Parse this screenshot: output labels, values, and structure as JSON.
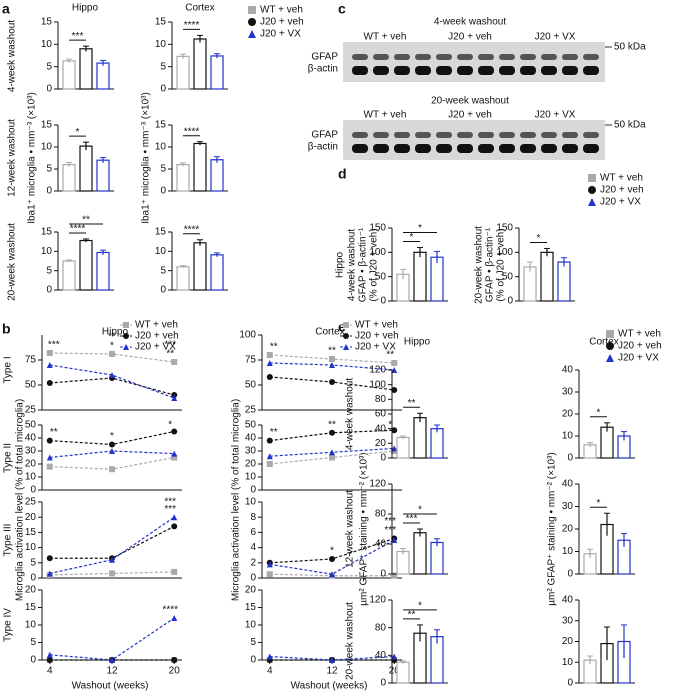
{
  "labels": {
    "letters": [
      "a",
      "b",
      "c",
      "d",
      "e"
    ],
    "hippo": "Hippo",
    "cortex": "Cortex",
    "washout": [
      "4-week washout",
      "12-week washout",
      "20-week washout"
    ],
    "iba1": "Iba1⁺ microglia • mm⁻³ (×10³)",
    "types": [
      "Type I",
      "Type II",
      "Type III",
      "Type IV"
    ],
    "activation": "Microglia activation level (% of total microglia)",
    "xlabel": "Washout (weeks)",
    "gfap_d": "GFAP • β-actin⁻¹",
    "pct": "(% of J20 + veh)",
    "gfap_e": "µm² GFAP⁺ staining • mm⁻² (×10³)",
    "blot": {
      "groups": [
        "WT + veh",
        "J20 + veh",
        "J20 + VX"
      ],
      "bands": [
        "GFAP",
        "β-actin"
      ],
      "kda": "50 kDa"
    }
  },
  "legend": {
    "names": [
      "WT + veh",
      "J20 + veh",
      "J20 + VX"
    ],
    "colors": [
      "#aaaaaa",
      "#111111",
      "#2233cc"
    ]
  },
  "chart_data": [
    {
      "type": "bar",
      "values": [
        6.3,
        9.0,
        5.8
      ],
      "errors": [
        0.4,
        0.6,
        0.6
      ],
      "ylim": [
        0,
        15
      ],
      "yticks": [
        0,
        5,
        10,
        15
      ],
      "annotations": [
        "***"
      ]
    },
    {
      "type": "bar",
      "values": [
        7.3,
        11.2,
        7.4
      ],
      "errors": [
        0.5,
        0.8,
        0.5
      ],
      "ylim": [
        0,
        15
      ],
      "yticks": [
        0,
        5,
        10,
        15
      ],
      "annotations": [
        "****"
      ]
    },
    {
      "type": "bar",
      "values": [
        6.0,
        10.2,
        7.0
      ],
      "errors": [
        0.5,
        0.9,
        0.6
      ],
      "ylim": [
        0,
        15
      ],
      "yticks": [
        0,
        5,
        10,
        15
      ],
      "annotations": [
        "*"
      ]
    },
    {
      "type": "bar",
      "values": [
        6.0,
        10.8,
        7.1
      ],
      "errors": [
        0.4,
        0.4,
        0.7
      ],
      "ylim": [
        0,
        15
      ],
      "yticks": [
        0,
        5,
        10,
        15
      ],
      "annotations": [
        "****"
      ]
    },
    {
      "type": "bar",
      "values": [
        7.5,
        12.8,
        9.7
      ],
      "errors": [
        0.3,
        0.4,
        0.6
      ],
      "ylim": [
        0,
        15
      ],
      "yticks": [
        0,
        5,
        10,
        15
      ],
      "annotations": [
        "****",
        "**"
      ]
    },
    {
      "type": "bar",
      "values": [
        6.0,
        12.2,
        9.1
      ],
      "errors": [
        0.3,
        0.8,
        0.5
      ],
      "ylim": [
        0,
        15
      ],
      "yticks": [
        0,
        5,
        10,
        15
      ],
      "annotations": [
        "****"
      ]
    },
    {
      "type": "line",
      "x": [
        4,
        12,
        20
      ],
      "xlim": [
        3,
        21
      ],
      "ylim": [
        25,
        100
      ],
      "yticks": [
        25,
        50,
        75
      ],
      "legend": true,
      "series": [
        {
          "name": "WT + veh",
          "color": "#aaaaaa",
          "values": [
            82,
            81,
            73
          ]
        },
        {
          "name": "J20 + veh",
          "color": "#111111",
          "values": [
            52,
            57,
            40
          ]
        },
        {
          "name": "J20 + VX",
          "color": "#2233cc",
          "values": [
            70,
            60,
            37
          ]
        }
      ],
      "annotations": [
        {
          "text": "***",
          "x": 4
        },
        {
          "text": "*",
          "x": 12
        },
        {
          "text": "**",
          "x": 12
        },
        {
          "text": "**",
          "x": 20
        },
        {
          "text": "***",
          "x": 20
        }
      ]
    },
    {
      "type": "line",
      "x": [
        4,
        12,
        20
      ],
      "xlim": [
        3,
        21
      ],
      "ylim": [
        25,
        100
      ],
      "yticks": [
        25,
        50,
        75,
        100
      ],
      "legend": true,
      "series": [
        {
          "name": "WT + veh",
          "color": "#aaaaaa",
          "values": [
            80,
            76,
            72
          ]
        },
        {
          "name": "J20 + veh",
          "color": "#111111",
          "values": [
            58,
            53,
            45
          ]
        },
        {
          "name": "J20 + VX",
          "color": "#2233cc",
          "values": [
            72,
            70,
            65
          ]
        }
      ],
      "annotations": [
        {
          "text": "**",
          "x": 4
        },
        {
          "text": "**",
          "x": 12
        },
        {
          "text": "**",
          "x": 20
        }
      ]
    },
    {
      "type": "line",
      "x": [
        4,
        12,
        20
      ],
      "xlim": [
        3,
        21
      ],
      "ylim": [
        0,
        50
      ],
      "yticks": [
        0,
        10,
        20,
        30,
        40,
        50
      ],
      "series": [
        {
          "color": "#aaaaaa",
          "values": [
            18,
            16,
            25
          ]
        },
        {
          "color": "#111111",
          "values": [
            38,
            35,
            45
          ]
        },
        {
          "color": "#2233cc",
          "values": [
            25,
            30,
            28
          ]
        }
      ],
      "annotations": [
        {
          "text": "**",
          "x": 4
        },
        {
          "text": "*",
          "x": 12
        },
        {
          "text": "*",
          "x": 20
        }
      ]
    },
    {
      "type": "line",
      "x": [
        4,
        12,
        20
      ],
      "xlim": [
        3,
        21
      ],
      "ylim": [
        0,
        50
      ],
      "yticks": [
        0,
        10,
        20,
        30,
        40,
        50
      ],
      "series": [
        {
          "color": "#aaaaaa",
          "values": [
            20,
            25,
            30
          ]
        },
        {
          "color": "#111111",
          "values": [
            38,
            44,
            46
          ]
        },
        {
          "color": "#2233cc",
          "values": [
            26,
            29,
            32
          ]
        }
      ],
      "annotations": [
        {
          "text": "**",
          "x": 4
        },
        {
          "text": "**",
          "x": 12
        },
        {
          "text": "*",
          "x": 20
        }
      ]
    },
    {
      "type": "line",
      "x": [
        4,
        12,
        20
      ],
      "xlim": [
        3,
        21
      ],
      "ylim": [
        0,
        25
      ],
      "yticks": [
        0,
        5,
        10,
        15,
        20,
        25
      ],
      "series": [
        {
          "color": "#aaaaaa",
          "values": [
            1,
            1.5,
            2
          ]
        },
        {
          "color": "#111111",
          "values": [
            6.5,
            6.5,
            17
          ]
        },
        {
          "color": "#2233cc",
          "values": [
            1.5,
            6,
            20
          ]
        }
      ],
      "annotations": [
        {
          "text": "***",
          "x": 20
        },
        {
          "text": "***",
          "x": 20
        }
      ]
    },
    {
      "type": "line",
      "x": [
        4,
        12,
        20
      ],
      "xlim": [
        3,
        21
      ],
      "ylim": [
        0,
        10
      ],
      "yticks": [
        0,
        2,
        4,
        6,
        8,
        10
      ],
      "series": [
        {
          "color": "#aaaaaa",
          "values": [
            0.5,
            0.3,
            0.3
          ]
        },
        {
          "color": "#111111",
          "values": [
            2,
            2.5,
            5.2
          ]
        },
        {
          "color": "#2233cc",
          "values": [
            1.8,
            0.5,
            5
          ]
        }
      ],
      "annotations": [
        {
          "text": "*",
          "x": 12
        },
        {
          "text": "***",
          "x": 20
        },
        {
          "text": "***",
          "x": 20
        }
      ]
    },
    {
      "type": "line",
      "x": [
        4,
        12,
        20
      ],
      "xlim": [
        3,
        21
      ],
      "xticks": [
        4,
        12,
        20
      ],
      "ylim": [
        0,
        20
      ],
      "yticks": [
        0,
        5,
        10,
        15,
        20
      ],
      "series": [
        {
          "color": "#aaaaaa",
          "values": [
            0,
            0,
            0
          ]
        },
        {
          "color": "#111111",
          "values": [
            0,
            0,
            0
          ]
        },
        {
          "color": "#2233cc",
          "values": [
            1.5,
            0,
            12
          ]
        }
      ],
      "annotations": [
        {
          "text": "****",
          "x": 20
        }
      ]
    },
    {
      "type": "line",
      "x": [
        4,
        12,
        20
      ],
      "xlim": [
        3,
        21
      ],
      "xticks": [
        4,
        12,
        20
      ],
      "ylim": [
        0,
        20
      ],
      "yticks": [
        0,
        5,
        10,
        15,
        20
      ],
      "series": [
        {
          "color": "#aaaaaa",
          "values": [
            0,
            0,
            0
          ]
        },
        {
          "color": "#111111",
          "values": [
            0,
            0,
            0
          ]
        },
        {
          "color": "#2233cc",
          "values": [
            1,
            0,
            1
          ]
        }
      ],
      "annotations": []
    },
    {
      "type": "bar",
      "values": [
        55,
        100,
        90
      ],
      "errors": [
        10,
        10,
        12
      ],
      "ylim": [
        0,
        150
      ],
      "yticks": [
        0,
        50,
        100,
        150
      ],
      "annotations": [
        "*",
        "*"
      ]
    },
    {
      "type": "bar",
      "values": [
        70,
        100,
        80
      ],
      "errors": [
        10,
        8,
        9
      ],
      "ylim": [
        0,
        150
      ],
      "yticks": [
        0,
        50,
        100,
        150
      ],
      "annotations": [
        "*"
      ]
    },
    {
      "type": "bar",
      "values": [
        28,
        55,
        40
      ],
      "errors": [
        2,
        6,
        5
      ],
      "ylim": [
        0,
        120
      ],
      "yticks": [
        0,
        20,
        40,
        60,
        80,
        100,
        120
      ],
      "annotations": [
        "**"
      ]
    },
    {
      "type": "bar",
      "values": [
        6,
        14,
        10
      ],
      "errors": [
        1,
        2,
        2
      ],
      "ylim": [
        0,
        40
      ],
      "yticks": [
        0,
        10,
        20,
        30,
        40
      ],
      "annotations": [
        "*"
      ]
    },
    {
      "type": "bar",
      "values": [
        30,
        55,
        42
      ],
      "errors": [
        4,
        5,
        5
      ],
      "ylim": [
        0,
        120
      ],
      "yticks": [
        0,
        40,
        80,
        120
      ],
      "annotations": [
        "***",
        "*"
      ]
    },
    {
      "type": "bar",
      "values": [
        9,
        22,
        15
      ],
      "errors": [
        2,
        5,
        3
      ],
      "ylim": [
        0,
        40
      ],
      "yticks": [
        0,
        10,
        20,
        30,
        40
      ],
      "annotations": [
        "*"
      ]
    },
    {
      "type": "bar",
      "values": [
        30,
        72,
        67
      ],
      "errors": [
        2,
        12,
        10
      ],
      "ylim": [
        0,
        120
      ],
      "yticks": [
        0,
        40,
        80,
        120
      ],
      "annotations": [
        "**",
        "*"
      ]
    },
    {
      "type": "bar",
      "values": [
        11,
        19,
        20
      ],
      "errors": [
        2,
        8,
        8
      ],
      "ylim": [
        0,
        40
      ],
      "yticks": [
        0,
        10,
        20,
        30,
        40
      ],
      "annotations": []
    }
  ]
}
